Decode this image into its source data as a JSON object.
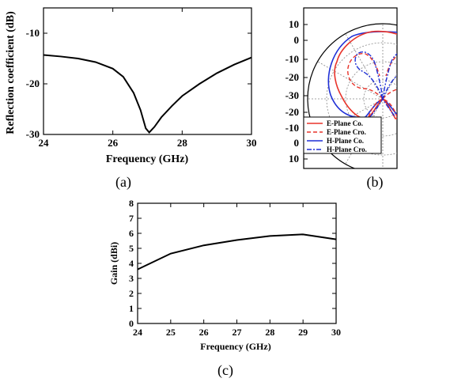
{
  "chart_data": [
    {
      "id": "a",
      "type": "line",
      "caption": "(a)",
      "xlabel": "Frequency (GHz)",
      "ylabel": "Reflection coefficient (dB)",
      "xlim": [
        24,
        30
      ],
      "ylim": [
        -30,
        -5
      ],
      "xticks": [
        24,
        26,
        28,
        30
      ],
      "yticks": [
        -30,
        -20,
        -10
      ],
      "xtick_labels": [
        "24",
        "26",
        "28",
        "30"
      ],
      "ytick_labels": [
        "-30",
        "-20",
        "-10"
      ],
      "grid": false,
      "series": [
        {
          "color": "#000000",
          "x": [
            24.0,
            24.5,
            25.0,
            25.5,
            26.0,
            26.3,
            26.6,
            26.8,
            26.95,
            27.05,
            27.2,
            27.4,
            27.7,
            28.0,
            28.5,
            29.0,
            29.5,
            30.0
          ],
          "y": [
            -14.3,
            -14.6,
            -15.0,
            -15.7,
            -17.0,
            -18.6,
            -21.8,
            -25.2,
            -28.8,
            -29.6,
            -28.5,
            -26.6,
            -24.4,
            -22.4,
            -20.0,
            -17.9,
            -16.2,
            -14.8
          ]
        }
      ]
    },
    {
      "id": "b",
      "type": "polar",
      "caption": "(b)",
      "rticks": [
        10,
        0,
        -10,
        -20,
        -30
      ],
      "rtick_labels_upper": [
        "10",
        "0",
        "-10",
        "-20",
        "-30"
      ],
      "rtick_labels_lower": [
        "-20",
        "-10",
        "0",
        "10"
      ],
      "rlim": [
        -30,
        10
      ],
      "legend_position": "lower-left",
      "series": [
        {
          "name": "E-Plane Co.",
          "color": "#e8332a",
          "dash": "solid"
        },
        {
          "name": "E-Plane Cro.",
          "color": "#e8332a",
          "dash": "dashed"
        },
        {
          "name": "H-Plane Co.",
          "color": "#1f2fd6",
          "dash": "solid"
        },
        {
          "name": "H-Plane Cro.",
          "color": "#1f2fd6",
          "dash": "dashdot"
        }
      ]
    },
    {
      "id": "c",
      "type": "line",
      "caption": "(c)",
      "xlabel": "Frequency (GHz)",
      "ylabel": "Gain (dBi)",
      "xlim": [
        24,
        30
      ],
      "ylim": [
        0,
        8
      ],
      "xticks": [
        24,
        25,
        26,
        27,
        28,
        29,
        30
      ],
      "yticks": [
        0,
        1,
        2,
        3,
        4,
        5,
        6,
        7,
        8
      ],
      "xtick_labels": [
        "24",
        "25",
        "26",
        "27",
        "28",
        "29",
        "30"
      ],
      "ytick_labels": [
        "0",
        "1",
        "2",
        "3",
        "4",
        "5",
        "6",
        "7",
        "8"
      ],
      "grid": false,
      "series": [
        {
          "color": "#000000",
          "x": [
            24,
            25,
            26,
            27,
            28,
            29,
            30
          ],
          "y": [
            3.6,
            4.65,
            5.2,
            5.55,
            5.82,
            5.93,
            5.6
          ]
        }
      ]
    }
  ]
}
